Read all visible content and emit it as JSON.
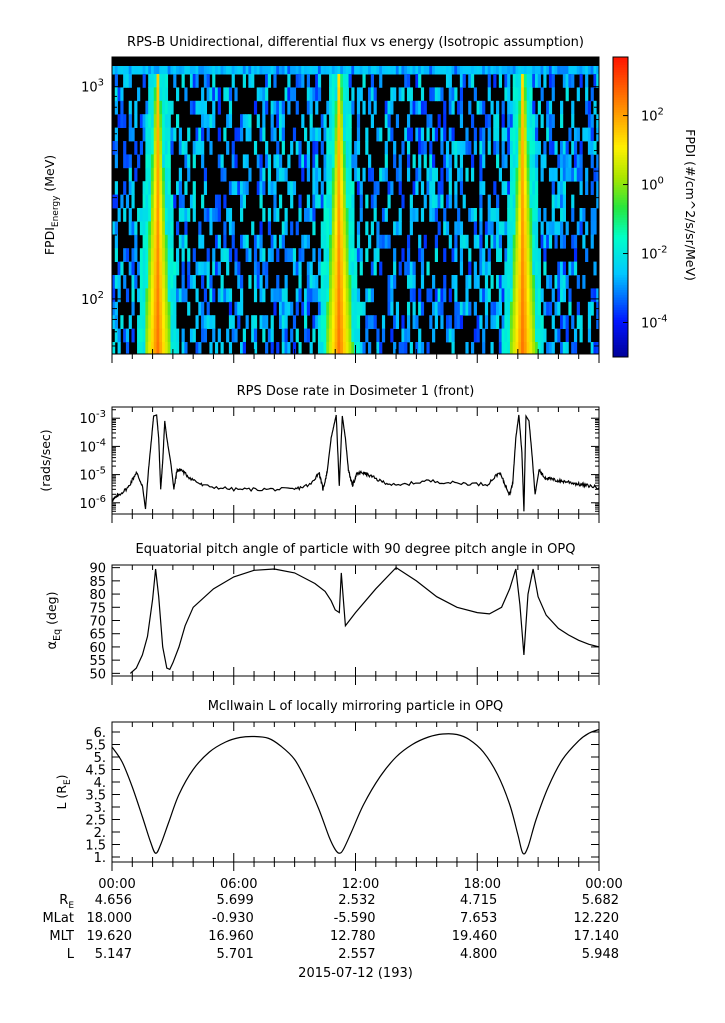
{
  "chart_data": [
    {
      "type": "heatmap",
      "title": "RPS-B  Unidirectional, differential flux vs energy (Isotropic assumption)",
      "ylabel": "FPDI",
      "ylabel_sub": "Energy",
      "ylabel_unit": "(MeV)",
      "y_scale": "log",
      "ylim": [
        55,
        1380
      ],
      "y_ticks": [
        {
          "value": 100,
          "base": "10",
          "exp": "2"
        },
        {
          "value": 1000,
          "base": "10",
          "exp": "3"
        }
      ],
      "colorbar": {
        "label": "FPDI (#/cm^2/s/sr/MeV)",
        "scale": "log",
        "range": [
          1e-05,
          5000
        ],
        "ticks": [
          {
            "value": 0.0001,
            "base": "10",
            "exp": "-4"
          },
          {
            "value": 0.01,
            "base": "10",
            "exp": "-2"
          },
          {
            "value": 1,
            "base": "10",
            "exp": "0"
          },
          {
            "value": 100,
            "base": "10",
            "exp": "2"
          }
        ],
        "colormap": "rainbow (blue to red)"
      },
      "belt_crossings_hours": [
        2.25,
        11.2,
        20.25
      ],
      "background": "mostly black with cyan/blue sparse noise; bright green-yellow-orange vertical bands at radiation belt crossings, widening to low energy"
    },
    {
      "type": "line",
      "title": "RPS  Dose rate in Dosimeter 1 (front)",
      "ylabel": "(rads/sec)",
      "y_scale": "log",
      "ylim": [
        4e-07,
        0.0025
      ],
      "y_ticks": [
        {
          "value": 1e-06,
          "base": "10",
          "exp": "-6"
        },
        {
          "value": 1e-05,
          "base": "10",
          "exp": "-5"
        },
        {
          "value": 0.0001,
          "base": "10",
          "exp": "-4"
        },
        {
          "value": 0.001,
          "base": "10",
          "exp": "-3"
        }
      ],
      "x_hours": [
        0,
        0.3,
        0.8,
        1.2,
        1.5,
        1.65,
        1.8,
        1.95,
        2.05,
        2.2,
        2.3,
        2.4,
        2.5,
        2.6,
        2.7,
        2.9,
        3.05,
        3.2,
        3.4,
        3.8,
        4.5,
        6,
        7.5,
        9,
        9.8,
        10.2,
        10.4,
        10.6,
        10.8,
        11.05,
        11.2,
        11.35,
        11.5,
        11.65,
        11.85,
        12.05,
        12.3,
        12.6,
        13.2,
        14,
        15.5,
        17,
        18.5,
        19.1,
        19.4,
        19.6,
        19.75,
        19.9,
        20.05,
        20.2,
        20.3,
        20.4,
        20.55,
        20.7,
        20.85,
        21.05,
        21.3,
        21.6,
        22,
        22.5,
        23,
        23.5,
        24
      ],
      "y_values": [
        1.2e-06,
        1.8e-06,
        3.5e-06,
        1.2e-05,
        4e-06,
        6e-07,
        1.5e-05,
        0.0002,
        0.0012,
        0.0013,
        0.0002,
        3e-06,
        3e-05,
        0.0008,
        0.0002,
        2.5e-05,
        3e-06,
        1.4e-05,
        1.5e-05,
        8e-06,
        4e-06,
        3e-06,
        3e-06,
        3e-06,
        4.5e-06,
        1.2e-05,
        3e-06,
        1.2e-05,
        0.0002,
        0.0013,
        4e-06,
        0.0012,
        0.0002,
        1.5e-05,
        4e-06,
        1e-05,
        1.2e-05,
        1e-05,
        6e-06,
        4e-06,
        6e-06,
        5e-06,
        4.5e-06,
        1.2e-05,
        4e-06,
        2e-06,
        5e-06,
        0.0002,
        0.0013,
        6e-05,
        5e-07,
        0.0012,
        0.0008,
        5e-05,
        2e-06,
        1.5e-05,
        8e-06,
        7e-06,
        6e-06,
        5.5e-06,
        4.5e-06,
        4e-06,
        3.5e-06
      ]
    },
    {
      "type": "line",
      "title": "Equatorial pitch angle of particle with 90 degree pitch angle in OPQ",
      "ylabel": "α",
      "ylabel_sub": "Eq",
      "ylabel_unit": "(deg)",
      "ylim": [
        49,
        91
      ],
      "y_ticks": [
        50,
        55,
        60,
        65,
        70,
        75,
        80,
        85,
        90
      ],
      "x_hours": [
        0.9,
        1.2,
        1.5,
        1.75,
        2.0,
        2.15,
        2.3,
        2.5,
        2.7,
        2.85,
        3.0,
        3.3,
        3.6,
        4.0,
        5.0,
        6.0,
        7.0,
        8.0,
        9.0,
        10.0,
        10.5,
        10.8,
        11.0,
        11.2,
        11.3,
        11.5,
        12.0,
        13.0,
        14.0,
        15.0,
        16.0,
        17.0,
        18.0,
        18.6,
        19.2,
        19.6,
        19.9,
        20.1,
        20.3,
        20.5,
        20.75,
        21.0,
        21.4,
        22.0,
        22.5,
        23.0,
        23.5,
        24.0
      ],
      "y_values": [
        50,
        52,
        57,
        64,
        78,
        89.5,
        79,
        60,
        52,
        51.5,
        54,
        60,
        68,
        75,
        82,
        86.5,
        89,
        89.5,
        88,
        84,
        81,
        77.5,
        74,
        73,
        88,
        68,
        73,
        82,
        90,
        85,
        79,
        75,
        73,
        72.5,
        75,
        82,
        89.5,
        76,
        57,
        80,
        89.5,
        79,
        72,
        67,
        64.5,
        62.5,
        61,
        60
      ]
    },
    {
      "type": "line",
      "title": "McIlwain L of locally mirroring particle in OPQ",
      "ylabel": "L",
      "ylabel_unit_open": "(R",
      "ylabel_sub": "E",
      "ylabel_unit_close": ")",
      "ylim": [
        0.8,
        6.4
      ],
      "y_ticks": [
        1,
        1.5,
        2,
        2.5,
        3,
        3.5,
        4,
        4.5,
        5,
        5.5,
        6
      ],
      "y_tick_labels": [
        "1.",
        "1.5",
        "2.",
        "2.5",
        "3.",
        "3.5",
        "4.",
        "4.5",
        "5.",
        "5.5",
        "6."
      ],
      "x_hours": [
        0,
        0.5,
        1.0,
        1.5,
        1.9,
        2.15,
        2.4,
        2.8,
        3.3,
        4.0,
        4.8,
        5.6,
        6.3,
        7.0,
        7.7,
        8.3,
        9.0,
        9.6,
        10.2,
        10.7,
        11.0,
        11.2,
        11.4,
        11.8,
        12.4,
        13.2,
        14.0,
        14.8,
        15.6,
        16.3,
        17.0,
        17.6,
        18.3,
        19.0,
        19.6,
        20.0,
        20.25,
        20.5,
        20.9,
        21.5,
        22.2,
        23.0,
        23.5,
        24.0
      ],
      "y_values": [
        5.4,
        4.8,
        3.8,
        2.6,
        1.6,
        1.15,
        1.5,
        2.4,
        3.5,
        4.5,
        5.2,
        5.6,
        5.78,
        5.82,
        5.75,
        5.45,
        4.9,
        4.0,
        2.9,
        1.8,
        1.3,
        1.15,
        1.3,
        2.0,
        3.1,
        4.2,
        5.0,
        5.5,
        5.8,
        5.92,
        5.9,
        5.7,
        5.2,
        4.3,
        3.1,
        1.9,
        1.15,
        1.4,
        2.5,
        3.8,
        4.9,
        5.65,
        5.95,
        6.1
      ]
    }
  ],
  "x_axis": {
    "range_hours": [
      0,
      24
    ],
    "tick_labels": [
      {
        "hour": 0,
        "label": "00:00"
      },
      {
        "hour": 6,
        "label": "06:00"
      },
      {
        "hour": 12,
        "label": "12:00"
      },
      {
        "hour": 18,
        "label": "18:00"
      },
      {
        "hour": 24,
        "label": "00:00"
      }
    ],
    "date_label": "2015-07-12 (193)"
  },
  "ephemeris": {
    "rows": [
      {
        "label_main": "R",
        "label_sub": "E",
        "values": [
          "4.656",
          "5.699",
          "2.532",
          "4.715",
          "5.682"
        ]
      },
      {
        "label_main": "MLat",
        "label_sub": "",
        "values": [
          "18.000",
          "-0.930",
          "-5.590",
          "7.653",
          "12.220"
        ]
      },
      {
        "label_main": "MLT",
        "label_sub": "",
        "values": [
          "19.620",
          "16.960",
          "12.780",
          "19.460",
          "17.140"
        ]
      },
      {
        "label_main": "L",
        "label_sub": "",
        "values": [
          "5.147",
          "5.701",
          "2.557",
          "4.800",
          "5.948"
        ]
      }
    ]
  }
}
